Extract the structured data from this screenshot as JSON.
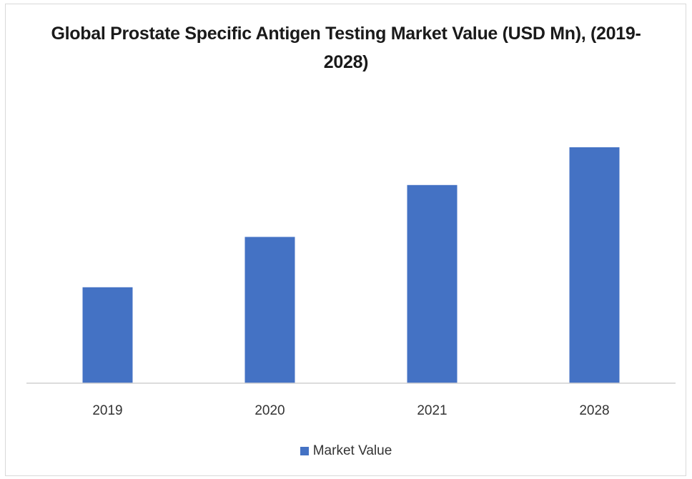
{
  "chart_data": {
    "type": "bar",
    "title_lines": [
      "Global Prostate Specific Antigen Testing Market Value (USD Mn), (2019-",
      "2028)"
    ],
    "categories": [
      "2019",
      "2020",
      "2021",
      "2028"
    ],
    "series": [
      {
        "name": "Market Value",
        "values": [
          3.05,
          4.65,
          6.3,
          7.5
        ],
        "color": "#4472C4"
      }
    ],
    "ylim": [
      0,
      10
    ],
    "y_axis_visible": false,
    "grid": false,
    "legend_position": "bottom"
  }
}
